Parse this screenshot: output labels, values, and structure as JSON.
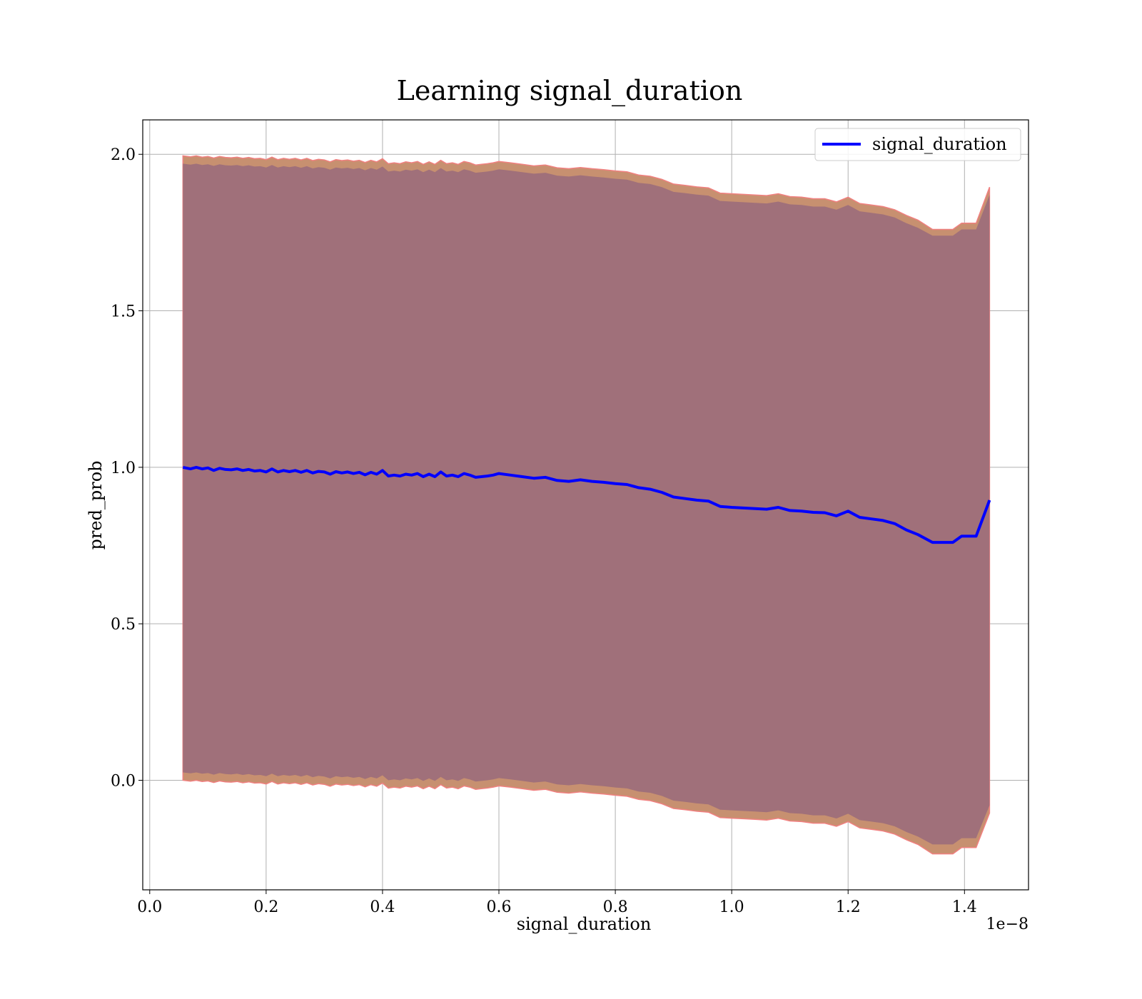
{
  "chart_data": {
    "type": "line",
    "title": "Learning signal_duration",
    "xlabel": "signal_duration",
    "ylabel": "pred_prob",
    "x_offset_label": "1e−8",
    "x_ticks": [
      0.0,
      0.2,
      0.4,
      0.6,
      0.8,
      1.0,
      1.2,
      1.4
    ],
    "x_tick_labels": [
      "0.0",
      "0.2",
      "0.4",
      "0.6",
      "0.8",
      "1.0",
      "1.2",
      "1.4"
    ],
    "y_ticks": [
      0.0,
      0.5,
      1.0,
      1.5,
      2.0
    ],
    "y_tick_labels": [
      "0.0",
      "0.5",
      "1.0",
      "1.5",
      "2.0"
    ],
    "xlim": [
      -0.012,
      1.51
    ],
    "ylim": [
      -0.35,
      2.11
    ],
    "grid": true,
    "legend_position": "top-right",
    "colors": {
      "line": "#0000ff",
      "band_inner": "#a0707a",
      "band_outer": "#c79070",
      "band_edge": "#f08080",
      "grid": "#b0b0b0"
    },
    "series": [
      {
        "name": "signal_duration",
        "x": [
          0.057,
          0.07,
          0.08,
          0.09,
          0.1,
          0.11,
          0.12,
          0.13,
          0.14,
          0.15,
          0.16,
          0.17,
          0.18,
          0.19,
          0.2,
          0.21,
          0.22,
          0.23,
          0.24,
          0.25,
          0.26,
          0.27,
          0.28,
          0.29,
          0.3,
          0.31,
          0.32,
          0.33,
          0.34,
          0.35,
          0.36,
          0.37,
          0.38,
          0.39,
          0.4,
          0.41,
          0.42,
          0.43,
          0.44,
          0.45,
          0.46,
          0.47,
          0.48,
          0.49,
          0.5,
          0.51,
          0.52,
          0.53,
          0.54,
          0.55,
          0.56,
          0.57,
          0.58,
          0.59,
          0.6,
          0.62,
          0.64,
          0.66,
          0.68,
          0.7,
          0.72,
          0.74,
          0.76,
          0.78,
          0.8,
          0.82,
          0.84,
          0.86,
          0.88,
          0.9,
          0.92,
          0.94,
          0.96,
          0.98,
          1.0,
          1.02,
          1.04,
          1.06,
          1.08,
          1.1,
          1.12,
          1.14,
          1.16,
          1.18,
          1.2,
          1.22,
          1.24,
          1.26,
          1.28,
          1.3,
          1.32,
          1.345,
          1.38,
          1.395,
          1.42,
          1.443
        ],
        "mean": [
          1.0,
          0.995,
          1.0,
          0.995,
          0.998,
          0.99,
          0.997,
          0.993,
          0.992,
          0.995,
          0.99,
          0.993,
          0.988,
          0.99,
          0.985,
          0.995,
          0.985,
          0.99,
          0.986,
          0.99,
          0.984,
          0.99,
          0.982,
          0.987,
          0.985,
          0.978,
          0.986,
          0.982,
          0.985,
          0.98,
          0.984,
          0.976,
          0.984,
          0.978,
          0.99,
          0.972,
          0.975,
          0.972,
          0.978,
          0.975,
          0.98,
          0.97,
          0.978,
          0.97,
          0.985,
          0.972,
          0.975,
          0.97,
          0.98,
          0.975,
          0.968,
          0.97,
          0.972,
          0.975,
          0.98,
          0.975,
          0.97,
          0.965,
          0.968,
          0.958,
          0.955,
          0.96,
          0.955,
          0.952,
          0.948,
          0.945,
          0.935,
          0.93,
          0.92,
          0.905,
          0.9,
          0.895,
          0.892,
          0.875,
          0.872,
          0.87,
          0.868,
          0.866,
          0.872,
          0.862,
          0.86,
          0.856,
          0.855,
          0.845,
          0.86,
          0.84,
          0.835,
          0.83,
          0.82,
          0.8,
          0.785,
          0.76,
          0.76,
          0.78,
          0.78,
          0.895
        ],
        "band_inner_upper": [
          1.97,
          1.967,
          1.97,
          1.966,
          1.968,
          1.963,
          1.968,
          1.965,
          1.964,
          1.966,
          1.962,
          1.965,
          1.961,
          1.962,
          1.958,
          1.966,
          1.958,
          1.962,
          1.959,
          1.962,
          1.957,
          1.962,
          1.955,
          1.959,
          1.957,
          1.951,
          1.958,
          1.955,
          1.957,
          1.953,
          1.956,
          1.949,
          1.956,
          1.951,
          1.961,
          1.945,
          1.948,
          1.945,
          1.951,
          1.948,
          1.952,
          1.943,
          1.951,
          1.943,
          1.956,
          1.945,
          1.948,
          1.943,
          1.952,
          1.948,
          1.941,
          1.943,
          1.945,
          1.948,
          1.952,
          1.948,
          1.943,
          1.938,
          1.941,
          1.932,
          1.929,
          1.933,
          1.929,
          1.926,
          1.922,
          1.919,
          1.909,
          1.905,
          1.895,
          1.88,
          1.876,
          1.871,
          1.868,
          1.851,
          1.849,
          1.847,
          1.845,
          1.843,
          1.849,
          1.84,
          1.838,
          1.833,
          1.833,
          1.823,
          1.838,
          1.818,
          1.813,
          1.808,
          1.798,
          1.78,
          1.765,
          1.74,
          1.74,
          1.76,
          1.76,
          1.87
        ],
        "band_outer_upper": [
          1.995,
          1.992,
          1.995,
          1.991,
          1.993,
          1.988,
          1.993,
          1.99,
          1.989,
          1.991,
          1.987,
          1.99,
          1.986,
          1.987,
          1.983,
          1.991,
          1.983,
          1.987,
          1.984,
          1.987,
          1.982,
          1.987,
          1.98,
          1.984,
          1.982,
          1.976,
          1.983,
          1.98,
          1.982,
          1.978,
          1.981,
          1.974,
          1.981,
          1.976,
          1.986,
          1.97,
          1.973,
          1.97,
          1.976,
          1.973,
          1.977,
          1.968,
          1.976,
          1.968,
          1.981,
          1.97,
          1.973,
          1.968,
          1.977,
          1.973,
          1.966,
          1.968,
          1.97,
          1.973,
          1.977,
          1.973,
          1.968,
          1.963,
          1.966,
          1.957,
          1.954,
          1.958,
          1.954,
          1.951,
          1.947,
          1.944,
          1.934,
          1.93,
          1.92,
          1.905,
          1.901,
          1.896,
          1.893,
          1.876,
          1.874,
          1.872,
          1.87,
          1.868,
          1.874,
          1.865,
          1.863,
          1.858,
          1.858,
          1.848,
          1.863,
          1.843,
          1.838,
          1.833,
          1.823,
          1.805,
          1.79,
          1.76,
          1.76,
          1.78,
          1.78,
          1.895
        ],
        "band_inner_lower": [
          0.025,
          0.022,
          0.025,
          0.021,
          0.023,
          0.018,
          0.023,
          0.02,
          0.019,
          0.021,
          0.017,
          0.02,
          0.016,
          0.017,
          0.013,
          0.021,
          0.013,
          0.017,
          0.014,
          0.017,
          0.012,
          0.017,
          0.01,
          0.014,
          0.012,
          0.006,
          0.013,
          0.01,
          0.012,
          0.008,
          0.011,
          0.004,
          0.011,
          0.006,
          0.016,
          0.0,
          0.003,
          0.0,
          0.006,
          0.003,
          0.007,
          -0.002,
          0.006,
          -0.002,
          0.011,
          0.0,
          0.003,
          -0.002,
          0.007,
          0.003,
          -0.004,
          -0.002,
          0.0,
          0.003,
          0.007,
          0.003,
          -0.002,
          -0.007,
          -0.004,
          -0.013,
          -0.016,
          -0.012,
          -0.016,
          -0.019,
          -0.023,
          -0.026,
          -0.036,
          -0.04,
          -0.05,
          -0.065,
          -0.069,
          -0.074,
          -0.077,
          -0.094,
          -0.096,
          -0.098,
          -0.1,
          -0.102,
          -0.096,
          -0.105,
          -0.107,
          -0.112,
          -0.112,
          -0.122,
          -0.107,
          -0.127,
          -0.132,
          -0.137,
          -0.147,
          -0.165,
          -0.18,
          -0.205,
          -0.205,
          -0.185,
          -0.185,
          -0.08
        ],
        "band_outer_lower": [
          0.0,
          -0.003,
          0.0,
          -0.004,
          -0.002,
          -0.007,
          -0.002,
          -0.005,
          -0.006,
          -0.004,
          -0.008,
          -0.005,
          -0.009,
          -0.008,
          -0.012,
          -0.004,
          -0.012,
          -0.008,
          -0.011,
          -0.008,
          -0.013,
          -0.008,
          -0.015,
          -0.011,
          -0.013,
          -0.019,
          -0.012,
          -0.015,
          -0.013,
          -0.017,
          -0.014,
          -0.021,
          -0.014,
          -0.019,
          -0.009,
          -0.025,
          -0.022,
          -0.025,
          -0.019,
          -0.022,
          -0.018,
          -0.027,
          -0.019,
          -0.027,
          -0.014,
          -0.025,
          -0.022,
          -0.027,
          -0.018,
          -0.022,
          -0.029,
          -0.027,
          -0.025,
          -0.022,
          -0.018,
          -0.022,
          -0.027,
          -0.032,
          -0.029,
          -0.038,
          -0.041,
          -0.037,
          -0.041,
          -0.044,
          -0.048,
          -0.051,
          -0.061,
          -0.065,
          -0.075,
          -0.09,
          -0.094,
          -0.099,
          -0.102,
          -0.119,
          -0.121,
          -0.123,
          -0.125,
          -0.127,
          -0.121,
          -0.13,
          -0.132,
          -0.137,
          -0.137,
          -0.147,
          -0.132,
          -0.152,
          -0.157,
          -0.162,
          -0.172,
          -0.19,
          -0.205,
          -0.235,
          -0.235,
          -0.215,
          -0.215,
          -0.105
        ]
      }
    ]
  }
}
